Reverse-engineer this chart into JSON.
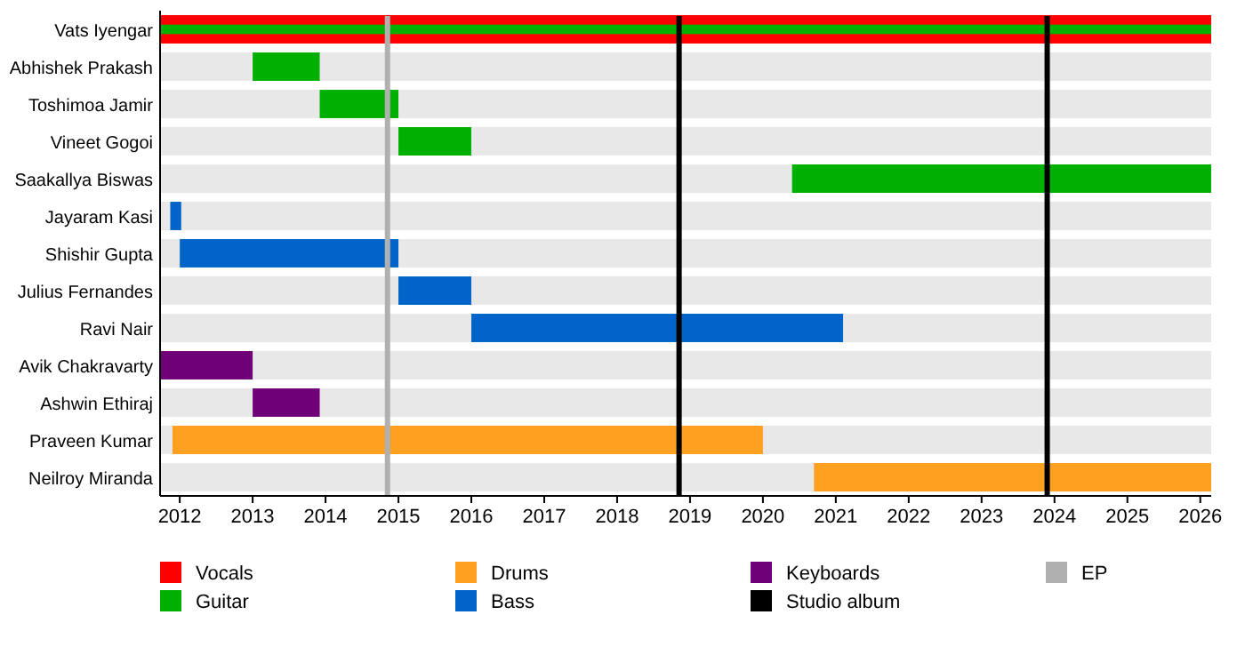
{
  "chart_data": {
    "type": "bar",
    "orientation": "horizontal",
    "categories": [
      "Vats Iyengar",
      "Abhishek Prakash",
      "Toshimoa Jamir",
      "Vineet Gogoi",
      "Saakallya Biswas",
      "Jayaram Kasi",
      "Shishir Gupta",
      "Julius Fernandes",
      "Ravi Nair",
      "Avik Chakravarty",
      "Ashwin Ethiraj",
      "Praveen Kumar",
      "Neilroy Miranda"
    ],
    "xlim": [
      2011.73,
      2026.15
    ],
    "xticks": [
      2012,
      2013,
      2014,
      2015,
      2016,
      2017,
      2018,
      2019,
      2020,
      2021,
      2022,
      2023,
      2024,
      2025,
      2026
    ],
    "legend": "bottom",
    "series": [
      {
        "name": "Vocals",
        "color": "#ff0000",
        "base": [
          2011.73,
          null,
          null,
          null,
          null,
          null,
          null,
          null,
          null,
          null,
          null,
          null,
          null
        ],
        "values": [
          14.42,
          null,
          null,
          null,
          null,
          null,
          null,
          null,
          null,
          null,
          null,
          null,
          null
        ]
      },
      {
        "name": "Guitar",
        "color": "#00b000",
        "base": [
          2011.73,
          2013,
          2013.92,
          2015,
          2020.4,
          null,
          null,
          null,
          null,
          null,
          null,
          null,
          null
        ],
        "values": [
          14.42,
          0.92,
          1.08,
          1,
          5.75,
          null,
          null,
          null,
          null,
          null,
          null,
          null,
          null
        ]
      },
      {
        "name": "Drums",
        "color": "#ffa020",
        "base": [
          null,
          null,
          null,
          null,
          null,
          null,
          null,
          null,
          null,
          null,
          null,
          2011.9,
          2020.7
        ],
        "values": [
          null,
          null,
          null,
          null,
          null,
          null,
          null,
          null,
          null,
          null,
          null,
          8.1,
          5.45
        ]
      },
      {
        "name": "Bass",
        "color": "#0064c8",
        "base": [
          null,
          null,
          null,
          null,
          null,
          2011.87,
          2012,
          2015,
          2016,
          null,
          null,
          null,
          null
        ],
        "values": [
          null,
          null,
          null,
          null,
          null,
          0.15,
          3,
          1,
          5.1,
          null,
          null,
          null,
          null
        ]
      },
      {
        "name": "Keyboards",
        "color": "#700078",
        "base": [
          null,
          null,
          null,
          null,
          null,
          null,
          null,
          null,
          null,
          2011.73,
          2013,
          null,
          null
        ],
        "values": [
          null,
          null,
          null,
          null,
          null,
          null,
          null,
          null,
          null,
          1.27,
          0.92,
          null,
          null
        ]
      }
    ],
    "ref_lines": [
      {
        "axis": "x",
        "value": 2018.85,
        "label": "Studio album",
        "color": "#000000"
      },
      {
        "axis": "x",
        "value": 2023.9,
        "label": null,
        "color": "#000000"
      },
      {
        "axis": "x",
        "value": 2014.85,
        "label": "EP",
        "color": "#b0b0b0"
      }
    ]
  }
}
